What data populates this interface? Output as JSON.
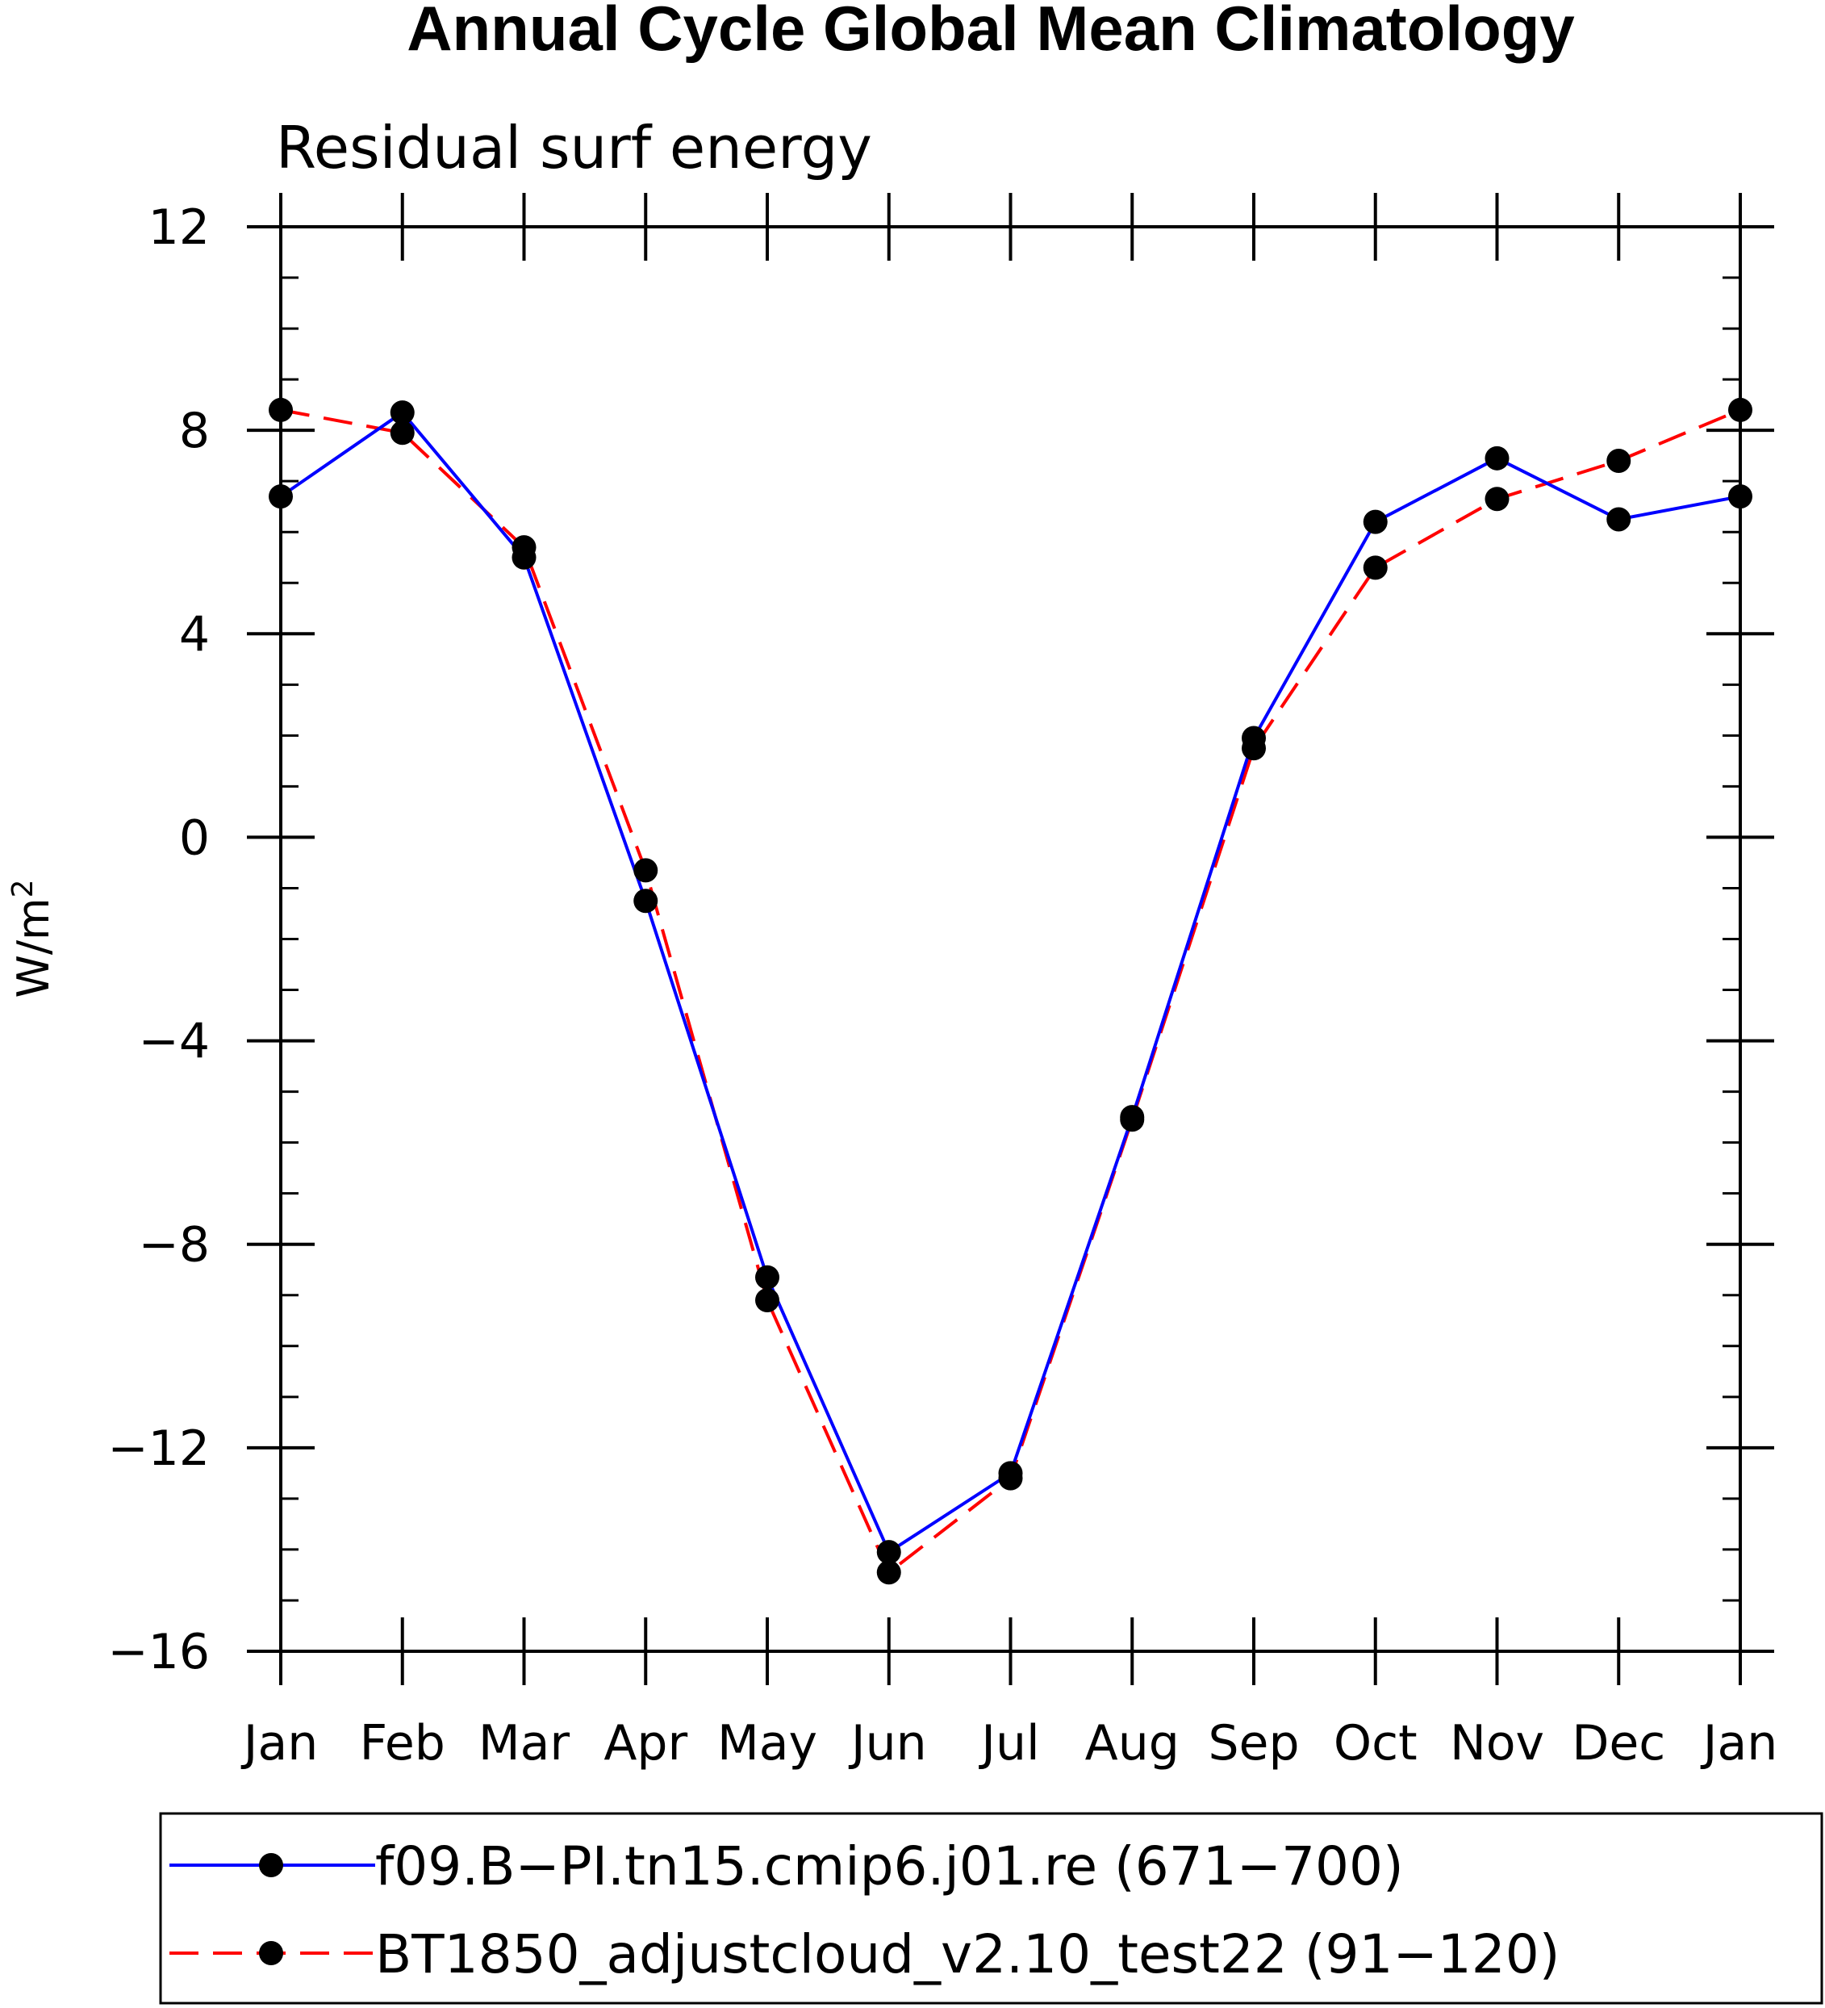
{
  "chart_data": {
    "type": "line",
    "title": "Annual Cycle Global Mean Climatology",
    "subtitle": "Residual surf energy",
    "ylabel": "W/m",
    "ylabel_sup": "2",
    "xlabel": "",
    "categories": [
      "Jan",
      "Feb",
      "Mar",
      "Apr",
      "May",
      "Jun",
      "Jul",
      "Aug",
      "Sep",
      "Oct",
      "Nov",
      "Dec",
      "Jan"
    ],
    "ylim": [
      -16,
      12
    ],
    "yticks": [
      12,
      8,
      4,
      0,
      -4,
      -8,
      -12,
      -16
    ],
    "ytick_labels": [
      "12",
      "8",
      "4",
      "0",
      "−4",
      "−8",
      "−12",
      "−16"
    ],
    "series": [
      {
        "name": "f09.B−PI.tn15.cmip6.j01.re (671−700)",
        "color": "#0000ff",
        "dash": "solid",
        "values": [
          6.7,
          8.35,
          5.5,
          -1.25,
          -8.65,
          -14.05,
          -12.5,
          -5.5,
          1.95,
          6.2,
          7.45,
          6.25,
          6.7
        ]
      },
      {
        "name": "BT1850_adjustcloud_v2.10_test22 (91−120)",
        "color": "#ff0000",
        "dash": "dashed",
        "values": [
          8.4,
          7.95,
          5.7,
          -0.65,
          -9.1,
          -14.45,
          -12.6,
          -5.55,
          1.75,
          5.3,
          6.65,
          7.4,
          8.4
        ]
      }
    ]
  }
}
